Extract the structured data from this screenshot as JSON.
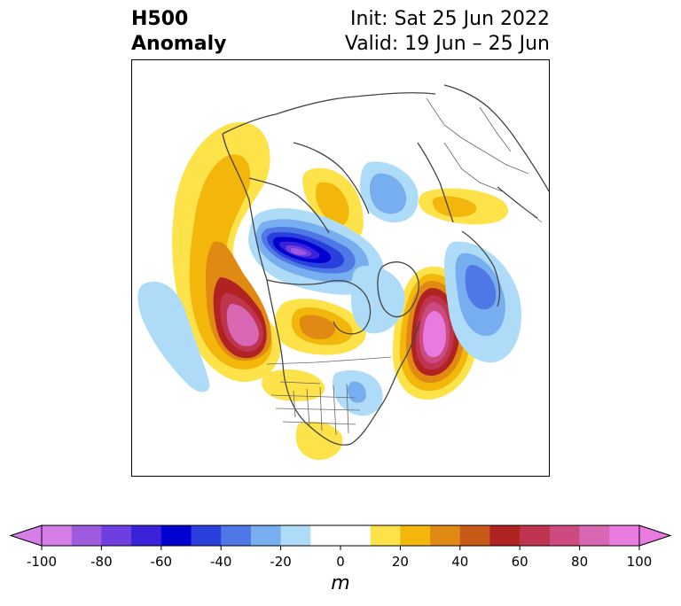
{
  "title": {
    "left_line1": "H500",
    "left_line2": "Anomaly",
    "right_line1": "Init: Sat 25 Jun 2022",
    "right_line2": "Valid: 19 Jun – 25 Jun"
  },
  "colorbar": {
    "units": "m",
    "ticks": [
      "-100",
      "-80",
      "-60",
      "-40",
      "-20",
      "0",
      "20",
      "40",
      "60",
      "80",
      "100"
    ],
    "bins": [
      {
        "from": -100,
        "to": -90,
        "color": "#d67ee8"
      },
      {
        "from": -90,
        "to": -80,
        "color": "#9f5be0"
      },
      {
        "from": -80,
        "to": -70,
        "color": "#6f3ee0"
      },
      {
        "from": -70,
        "to": -60,
        "color": "#3a22d8"
      },
      {
        "from": -60,
        "to": -50,
        "color": "#0000d0"
      },
      {
        "from": -50,
        "to": -40,
        "color": "#2a40dc"
      },
      {
        "from": -40,
        "to": -30,
        "color": "#5077e6"
      },
      {
        "from": -30,
        "to": -20,
        "color": "#77aef0"
      },
      {
        "from": -20,
        "to": -10,
        "color": "#aedcf8"
      },
      {
        "from": -10,
        "to": 10,
        "color": "#ffffff"
      },
      {
        "from": 10,
        "to": 20,
        "color": "#fde24a"
      },
      {
        "from": 20,
        "to": 30,
        "color": "#f2b70a"
      },
      {
        "from": 30,
        "to": 40,
        "color": "#e08a14"
      },
      {
        "from": 40,
        "to": 50,
        "color": "#c85a18"
      },
      {
        "from": 50,
        "to": 60,
        "color": "#b12222"
      },
      {
        "from": 60,
        "to": 70,
        "color": "#bf3550"
      },
      {
        "from": 70,
        "to": 80,
        "color": "#cc4a80"
      },
      {
        "from": 80,
        "to": 90,
        "color": "#d968b4"
      },
      {
        "from": 90,
        "to": 100,
        "color": "#e87ae0"
      }
    ],
    "extend": "both"
  }
}
